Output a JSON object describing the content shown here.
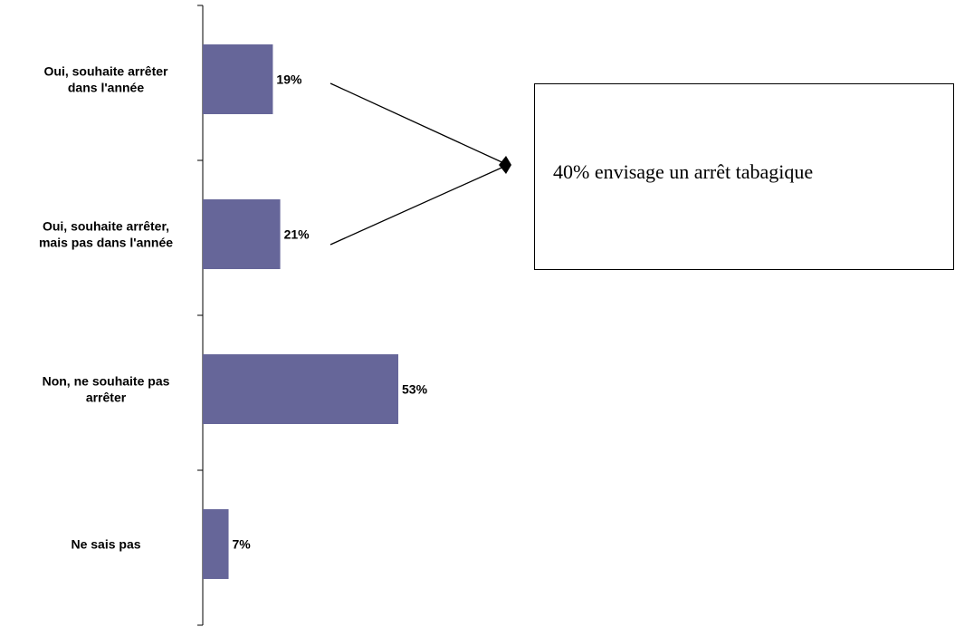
{
  "chart_data": {
    "type": "bar",
    "orientation": "horizontal",
    "categories": [
      [
        "Oui, souhaite arrêter",
        "dans l'année"
      ],
      [
        "Oui, souhaite arrêter,",
        "mais pas dans l'année"
      ],
      [
        "Non, ne souhaite pas",
        "arrêter"
      ],
      [
        "Ne sais pas"
      ]
    ],
    "values": [
      19,
      21,
      53,
      7
    ],
    "value_labels": [
      "19%",
      "21%",
      "53%",
      "7%"
    ],
    "bar_color": "#666699",
    "title": "",
    "xlabel": "",
    "ylabel": "",
    "xlim": [
      0,
      100
    ],
    "grid": false,
    "legend": "none"
  },
  "callout": {
    "text": "40% envisage un arrêt tabagique",
    "points_to": [
      0,
      1
    ]
  }
}
